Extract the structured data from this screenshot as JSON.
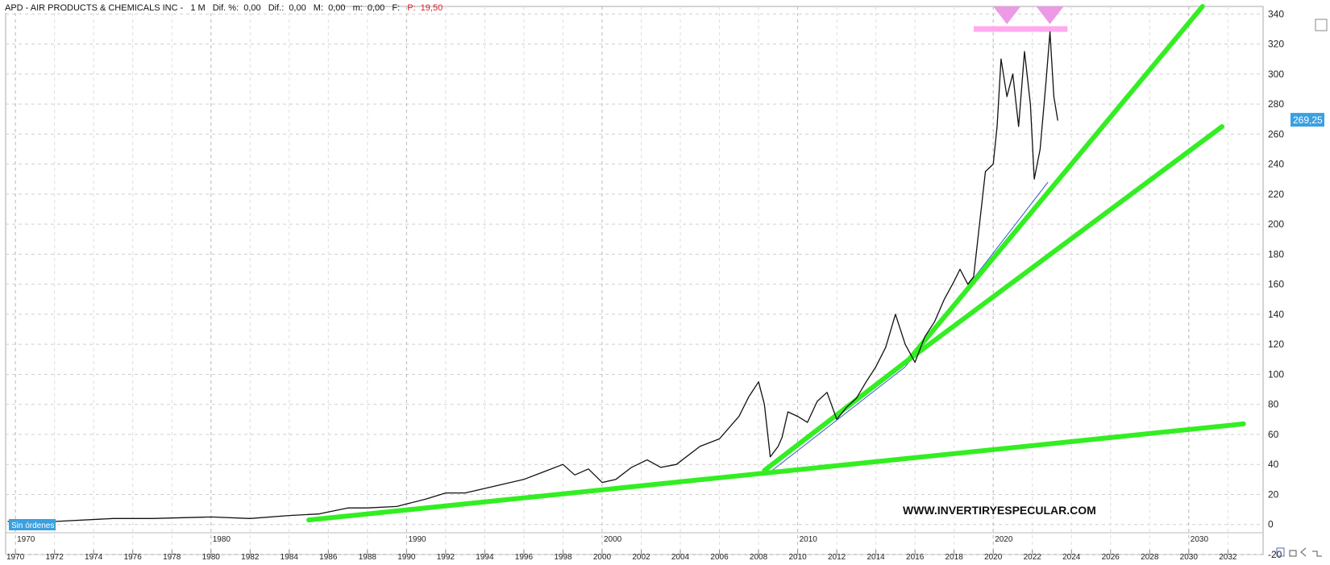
{
  "header": {
    "symbol_title": "APD - AIR PRODUCTS & CHEMICALS INC -",
    "timeframe": "1 M",
    "fields": [
      {
        "label": "Dif. %:",
        "value": "0,00"
      },
      {
        "label": "Dif.:",
        "value": "0,00"
      },
      {
        "label": "M:",
        "value": "0,00"
      },
      {
        "label": "m:",
        "value": "0,00"
      },
      {
        "label": "F:",
        "value": ""
      }
    ],
    "p_label": "P:",
    "p_value": "19,50"
  },
  "orders_badge": "Sin órdenes",
  "watermark": "WWW.INVERTIRYESPECULAR.COM",
  "current_price_label": "269,25",
  "colors": {
    "trendline": "#33ee22",
    "price": "#111111",
    "resistance": "#ffaaee",
    "badge": "#3aa0e0",
    "header_red": "#e0202a"
  },
  "chart_data": {
    "type": "line",
    "x_range": [
      1969.5,
      2033.8
    ],
    "y_range": [
      -20,
      345
    ],
    "y_ticks": [
      -20,
      0,
      20,
      40,
      60,
      80,
      100,
      120,
      140,
      160,
      180,
      200,
      220,
      240,
      260,
      280,
      300,
      320,
      340
    ],
    "y_tick_labels": [
      "-20",
      "0",
      "20",
      "40",
      "60",
      "80",
      "100",
      "120",
      "140",
      "160",
      "180",
      "200",
      "220",
      "240",
      "260",
      "280",
      "300",
      "320",
      "340"
    ],
    "x_ticks": [
      1970,
      1972,
      1974,
      1976,
      1978,
      1980,
      1982,
      1984,
      1986,
      1988,
      1990,
      1992,
      1994,
      1996,
      1998,
      2000,
      2002,
      2004,
      2006,
      2008,
      2010,
      2012,
      2014,
      2016,
      2018,
      2020,
      2022,
      2024,
      2026,
      2028,
      2030,
      2032
    ],
    "x_tick_labels": [
      "1970",
      "1972",
      "1974",
      "1976",
      "1978",
      "1980",
      "1982",
      "1984",
      "1986",
      "1988",
      "1990",
      "1992",
      "1994",
      "1996",
      "1998",
      "2000",
      "2002",
      "2004",
      "2006",
      "2008",
      "2010",
      "2012",
      "2014",
      "2016",
      "2018",
      "2020",
      "2022",
      "2024",
      "2026",
      "2028",
      "2030",
      "2032"
    ],
    "decade_labels": [
      "1970",
      "1980",
      "1990",
      "2000",
      "2010",
      "2020",
      "2030"
    ],
    "decade_years": [
      1970,
      1980,
      1990,
      2000,
      2010,
      2020,
      2030
    ],
    "grid": true,
    "price_series": {
      "x": [
        1969.6,
        1972,
        1975,
        1977,
        1980,
        1982,
        1984,
        1985.5,
        1987,
        1988,
        1989.5,
        1991,
        1992,
        1993,
        1994,
        1995,
        1996,
        1997,
        1998,
        1998.6,
        1999.3,
        2000,
        2000.7,
        2001.5,
        2002.3,
        2003,
        2003.8,
        2005,
        2006,
        2007,
        2007.5,
        2008,
        2008.3,
        2008.6,
        2009,
        2009.2,
        2009.5,
        2010,
        2010.5,
        2011,
        2011.5,
        2012,
        2012.5,
        2013,
        2013.5,
        2014,
        2014.5,
        2015,
        2015.5,
        2016,
        2016.5,
        2017,
        2017.5,
        2018,
        2018.3,
        2018.7,
        2019,
        2019.3,
        2019.6,
        2020,
        2020.2,
        2020.4,
        2020.7,
        2021,
        2021.3,
        2021.6,
        2021.9,
        2022.1,
        2022.4,
        2022.7,
        2022.9,
        2023.1,
        2023.3
      ],
      "y": [
        2,
        2,
        4,
        4,
        5,
        4,
        6,
        7,
        11,
        11,
        12,
        17,
        21,
        21,
        24,
        27,
        30,
        35,
        40,
        33,
        37,
        28,
        30,
        38,
        43,
        38,
        40,
        52,
        57,
        72,
        85,
        95,
        80,
        45,
        52,
        58,
        75,
        72,
        68,
        82,
        88,
        70,
        78,
        84,
        95,
        105,
        118,
        140,
        120,
        108,
        125,
        135,
        150,
        162,
        170,
        160,
        165,
        200,
        235,
        240,
        265,
        310,
        285,
        300,
        265,
        315,
        280,
        230,
        250,
        295,
        328,
        285,
        269
      ]
    },
    "trendlines": [
      {
        "x": [
          1985,
          2032.8
        ],
        "y": [
          3,
          67
        ]
      },
      {
        "x": [
          2008.3,
          2015.7
        ],
        "y": [
          36,
          110
        ]
      },
      {
        "x": [
          2015.7,
          2031.7
        ],
        "y": [
          110,
          265
        ]
      },
      {
        "x": [
          2015.7,
          2030.7
        ],
        "y": [
          110,
          345
        ]
      }
    ],
    "thin_trendlines": [
      {
        "x": [
          2008.6,
          2015.5
        ],
        "y": [
          35,
          105
        ]
      },
      {
        "x": [
          2015.5,
          2022.8
        ],
        "y": [
          105,
          228
        ]
      }
    ],
    "resistance": {
      "x": [
        2019,
        2023.8
      ],
      "y": 330
    },
    "top_markers_x": [
      2020.7,
      2022.9
    ],
    "current_price": 269.25
  }
}
